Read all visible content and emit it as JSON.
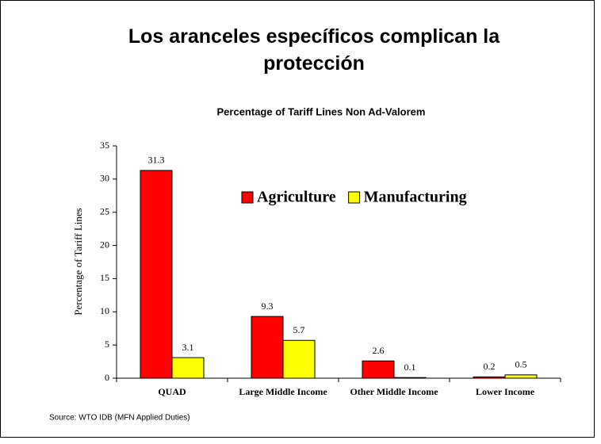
{
  "chart_data": {
    "type": "bar",
    "title": "Los aranceles específicos complican la protección",
    "subtitle": "Percentage of Tariff Lines Non Ad-Valorem",
    "y_label": "Percentage of Tariff Lines",
    "source": "Source: WTO IDB (MFN Applied Duties)",
    "categories": [
      "QUAD",
      "Large Middle Income",
      "Other Middle Income",
      "Lower Income"
    ],
    "series": [
      {
        "name": "Agriculture",
        "color": "#ff0000",
        "values": [
          31.3,
          9.3,
          2.6,
          0.2
        ]
      },
      {
        "name": "Manufacturing",
        "color": "#ffff00",
        "values": [
          3.1,
          5.7,
          0.1,
          0.5
        ]
      }
    ],
    "ylim": [
      0,
      35
    ],
    "yticks": [
      0,
      5,
      10,
      15,
      20,
      25,
      30,
      35
    ]
  }
}
